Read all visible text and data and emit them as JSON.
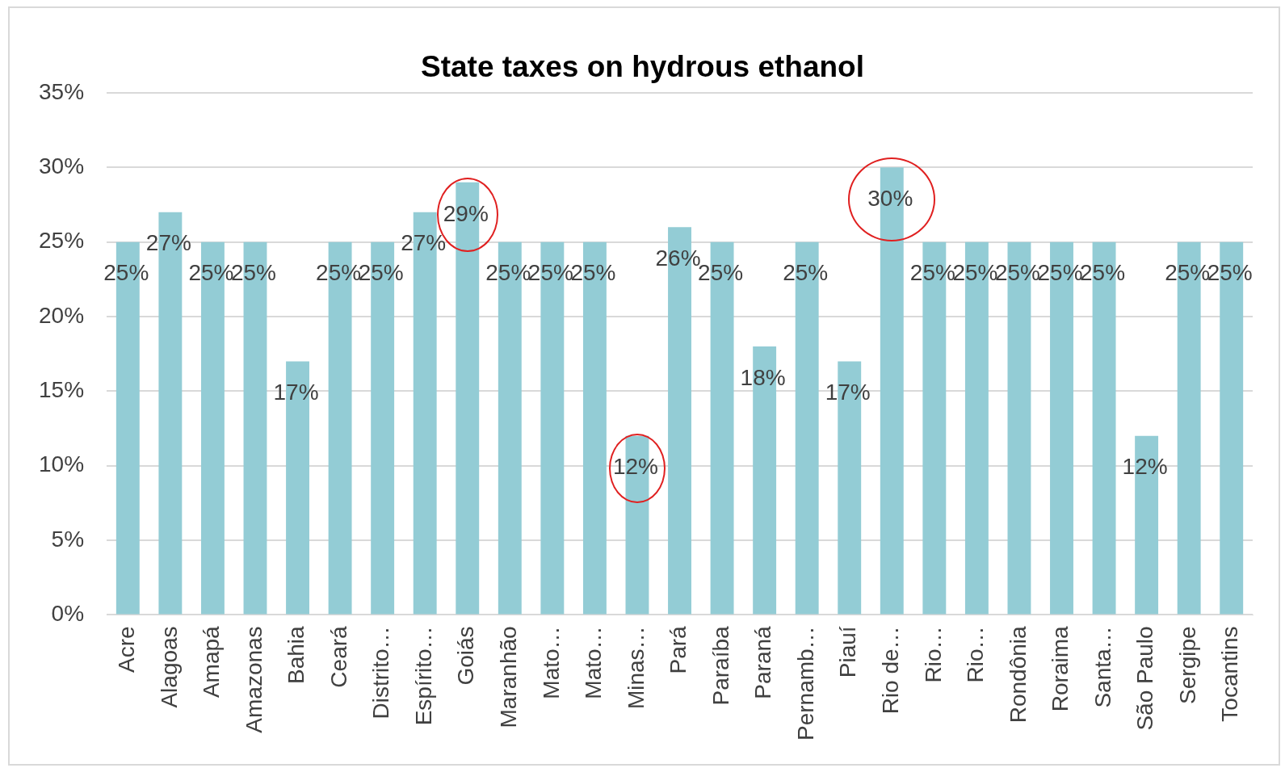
{
  "chart_data": {
    "type": "bar",
    "title": "State taxes on hydrous ethanol",
    "categories": [
      "Acre",
      "Alagoas",
      "Amapá",
      "Amazonas",
      "Bahia",
      "Ceará",
      "Distrito…",
      "Espírito…",
      "Goiás",
      "Maranhão",
      "Mato…",
      "Mato…",
      "Minas…",
      "Pará",
      "Paraíba",
      "Paraná",
      "Pernamb…",
      "Piauí",
      "Rio de…",
      "Rio…",
      "Rio…",
      "Rondônia",
      "Roraima",
      "Santa…",
      "São Paulo",
      "Sergipe",
      "Tocantins"
    ],
    "values": [
      25,
      27,
      25,
      25,
      17,
      25,
      25,
      27,
      29,
      25,
      25,
      25,
      12,
      26,
      25,
      18,
      25,
      17,
      30,
      25,
      25,
      25,
      25,
      25,
      12,
      25,
      25
    ],
    "value_labels": [
      "25%",
      "27%",
      "25%",
      "25%",
      "17%",
      "25%",
      "25%",
      "27%",
      "29%",
      "25%",
      "25%",
      "25%",
      "12%",
      "26%",
      "25%",
      "18%",
      "25%",
      "17%",
      "30%",
      "25%",
      "25%",
      "25%",
      "25%",
      "25%",
      "12%",
      "25%",
      "25%"
    ],
    "color": "#93ccd5",
    "ylim": [
      0,
      35
    ],
    "yticks": [
      {
        "value": 0,
        "label": "0%"
      },
      {
        "value": 5,
        "label": "5%"
      },
      {
        "value": 10,
        "label": "10%"
      },
      {
        "value": 15,
        "label": "15%"
      },
      {
        "value": 20,
        "label": "20%"
      },
      {
        "value": 25,
        "label": "25%"
      },
      {
        "value": 30,
        "label": "30%"
      },
      {
        "value": 35,
        "label": "35%"
      }
    ],
    "grid": "y",
    "legend": false
  }
}
